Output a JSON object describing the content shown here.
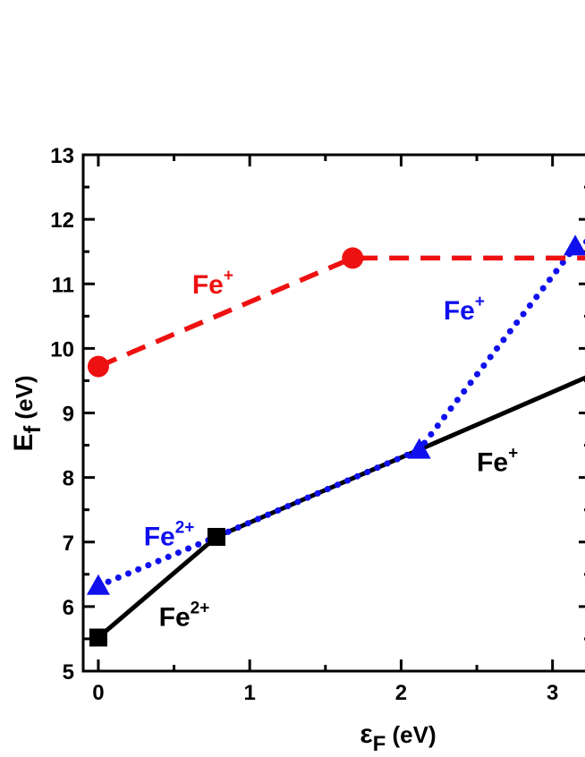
{
  "chart_data": {
    "type": "line",
    "xlabel": {
      "symbol": "ε",
      "subscript": "F",
      "unit": " (eV)"
    },
    "ylabel": {
      "symbol": "E",
      "subscript": "f",
      "unit": " (eV)"
    },
    "xlim": [
      -0.1,
      3.25
    ],
    "ylim": [
      5,
      13
    ],
    "xticks": [
      "0",
      "1",
      "2",
      "3"
    ],
    "yticks": [
      "5",
      "6",
      "7",
      "8",
      "9",
      "10",
      "11",
      "12",
      "13"
    ],
    "grid": false,
    "series": [
      {
        "style": "solid",
        "color": "#000000",
        "marker": "square",
        "x": [
          0,
          0.78,
          2.12,
          3.25
        ],
        "y": [
          5.52,
          7.08,
          8.43,
          9.58
        ],
        "markers_x": [
          0,
          0.78
        ],
        "markers_y": [
          5.52,
          7.08
        ]
      },
      {
        "style": "dotted",
        "color": "#1010ee",
        "marker": "triangle",
        "x": [
          0,
          0.78,
          2.12,
          3.15,
          3.25
        ],
        "y": [
          6.32,
          7.08,
          8.43,
          11.58,
          11.68
        ],
        "markers_x": [
          0,
          2.12,
          3.15
        ],
        "markers_y": [
          6.32,
          8.43,
          11.58
        ]
      },
      {
        "style": "dashed",
        "color": "#ee1111",
        "marker": "circle",
        "x": [
          0,
          1.68,
          3.25
        ],
        "y": [
          9.72,
          11.4,
          11.4
        ],
        "markers_x": [
          0,
          1.68
        ],
        "markers_y": [
          9.72,
          11.4
        ]
      }
    ],
    "annotations": [
      {
        "base": "Fe",
        "sup": "+",
        "color": "#ee1111",
        "x": 0.62,
        "y": 10.85
      },
      {
        "base": "Fe",
        "sup": "+",
        "color": "#1010ee",
        "x": 2.28,
        "y": 10.45
      },
      {
        "base": "Fe",
        "sup": "+",
        "color": "#000000",
        "x": 2.5,
        "y": 8.1
      },
      {
        "base": "Fe",
        "sup": "2+",
        "color": "#1010ee",
        "x": 0.3,
        "y": 6.95
      },
      {
        "base": "Fe",
        "sup": "2+",
        "color": "#000000",
        "x": 0.4,
        "y": 5.7
      }
    ]
  }
}
